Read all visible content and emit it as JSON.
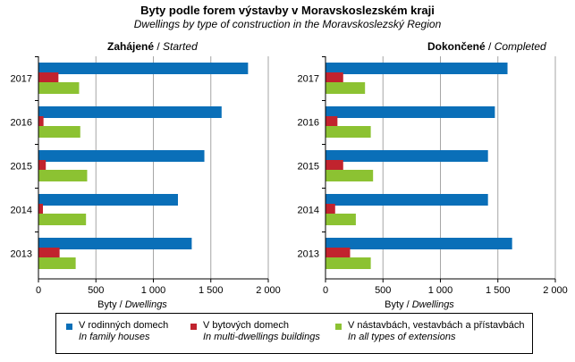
{
  "title": "Byty  podle forem výstavby  v Moravskoslezském  kraji",
  "subtitle": "Dwellings  by type of construction in the Moravskoslezský Region",
  "colors": {
    "family": "#0a6fb8",
    "multi": "#c1232e",
    "ext": "#8cc232",
    "grid": "#a6a6a6"
  },
  "chart_data": [
    {
      "type": "bar",
      "orientation": "horizontal",
      "title_cs": "Zahájené",
      "title_en": "Started",
      "xlabel_cs": "Byty",
      "xlabel_en": "Dwellings",
      "xlim": [
        0,
        2000
      ],
      "xticks": [
        "0",
        "500",
        "1 000",
        "1 500",
        "2 000"
      ],
      "categories": [
        "2017",
        "2016",
        "2015",
        "2014",
        "2013"
      ],
      "series": [
        {
          "name": "V rodinných domech",
          "values": [
            1820,
            1590,
            1440,
            1210,
            1330
          ]
        },
        {
          "name": "V bytových domech",
          "values": [
            170,
            40,
            60,
            35,
            180
          ]
        },
        {
          "name": "V nástavbách, vestavbách a přístavbách",
          "values": [
            350,
            360,
            420,
            410,
            320
          ]
        }
      ]
    },
    {
      "type": "bar",
      "orientation": "horizontal",
      "title_cs": "Dokončené",
      "title_en": "Completed",
      "xlabel_cs": "Byty",
      "xlabel_en": "Dwellings",
      "xlim": [
        0,
        2000
      ],
      "xticks": [
        "0",
        "500",
        "1 000",
        "1 500",
        "2 000"
      ],
      "categories": [
        "2017",
        "2016",
        "2015",
        "2014",
        "2013"
      ],
      "series": [
        {
          "name": "V rodinných domech",
          "values": [
            1580,
            1470,
            1410,
            1410,
            1620
          ]
        },
        {
          "name": "V bytových domech",
          "values": [
            150,
            100,
            150,
            80,
            210
          ]
        },
        {
          "name": "V nástavbách, vestavbách a přístavbách",
          "values": [
            340,
            390,
            410,
            260,
            390
          ]
        }
      ]
    }
  ],
  "legend": [
    {
      "key": "family",
      "cs": "V rodinných domech",
      "en": "In family houses"
    },
    {
      "key": "multi",
      "cs": "V bytových domech",
      "en": "In multi-dwellings buildings"
    },
    {
      "key": "ext",
      "cs": "V nástavbách, vestavbách a přístavbách",
      "en": "In all types of extensions"
    }
  ]
}
